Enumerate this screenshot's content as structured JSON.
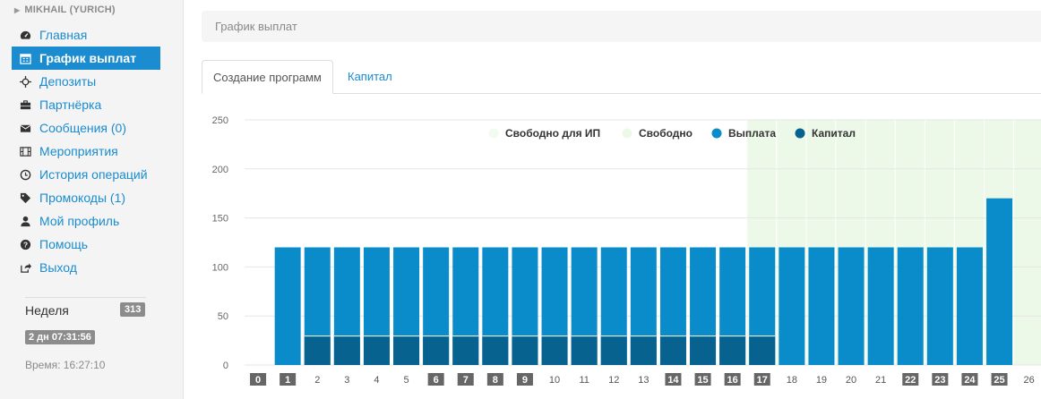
{
  "sidebar": {
    "user_name": "MIKHAIL (YURICH)",
    "menu": [
      {
        "label": "Главная",
        "icon": "dashboard-icon",
        "active": false
      },
      {
        "label": "График выплат",
        "icon": "calendar-icon",
        "active": true
      },
      {
        "label": "Депозиты",
        "icon": "crosshair-icon",
        "active": false
      },
      {
        "label": "Партнёрка",
        "icon": "briefcase-icon",
        "active": false
      },
      {
        "label": "Сообщения (0)",
        "icon": "envelope-icon",
        "active": false
      },
      {
        "label": "Мероприятия",
        "icon": "film-icon",
        "active": false
      },
      {
        "label": "История операций",
        "icon": "clock-icon",
        "active": false
      },
      {
        "label": "Промокоды (1)",
        "icon": "tag-icon",
        "active": false
      },
      {
        "label": "Мой профиль",
        "icon": "user-icon",
        "active": false
      },
      {
        "label": "Помощь",
        "icon": "question-icon",
        "active": false
      },
      {
        "label": "Выход",
        "icon": "share-icon",
        "active": false
      }
    ],
    "week_label": "Неделя",
    "week_number": "313",
    "timer": "2 дн 07:31:56",
    "time": "Время: 16:27:10"
  },
  "breadcrumb": "График выплат",
  "tabs": [
    {
      "label": "Создание программ",
      "active": true
    },
    {
      "label": "Капитал",
      "active": false
    }
  ],
  "colors": {
    "accent": "#1a8ccf",
    "payout": "#0a8ccb",
    "capital": "#07628f",
    "free": "#edf9e8",
    "free_ip": "#f2fbef",
    "badge": "#8c8c8c"
  },
  "chart_data": {
    "type": "bar",
    "ylim": [
      0,
      250
    ],
    "yticks": [
      0,
      50,
      100,
      150,
      200,
      250
    ],
    "grid": true,
    "legend_position": "top",
    "legend": [
      {
        "name": "Свободно для ИП",
        "color": "#f2fbef"
      },
      {
        "name": "Свободно",
        "color": "#edf9e8"
      },
      {
        "name": "Выплата",
        "color": "#0a8ccb"
      },
      {
        "name": "Капитал",
        "color": "#07628f"
      }
    ],
    "categories": [
      "0",
      "1",
      "2",
      "3",
      "4",
      "5",
      "6",
      "7",
      "8",
      "9",
      "10",
      "11",
      "12",
      "13",
      "14",
      "15",
      "16",
      "17",
      "18",
      "19",
      "20",
      "21",
      "22",
      "23",
      "24",
      "25",
      "26"
    ],
    "highlighted_categories": [
      "0",
      "1",
      "6",
      "7",
      "8",
      "9",
      "14",
      "15",
      "16",
      "17",
      "22",
      "23",
      "24",
      "25"
    ],
    "series": [
      {
        "name": "Выплата",
        "values": [
          0,
          120,
          120,
          120,
          120,
          120,
          120,
          120,
          120,
          120,
          120,
          120,
          120,
          120,
          120,
          120,
          120,
          120,
          120,
          120,
          120,
          120,
          120,
          120,
          120,
          170,
          0
        ]
      },
      {
        "name": "Капитал",
        "values": [
          0,
          0,
          30,
          30,
          30,
          30,
          30,
          30,
          30,
          30,
          30,
          30,
          30,
          30,
          30,
          30,
          30,
          30,
          0,
          0,
          0,
          0,
          0,
          0,
          0,
          0,
          0
        ]
      },
      {
        "name": "Свободно",
        "values": [
          0,
          0,
          0,
          0,
          0,
          0,
          0,
          0,
          0,
          0,
          0,
          0,
          0,
          0,
          0,
          0,
          0,
          250,
          250,
          250,
          250,
          250,
          250,
          250,
          250,
          250,
          250
        ]
      }
    ]
  }
}
